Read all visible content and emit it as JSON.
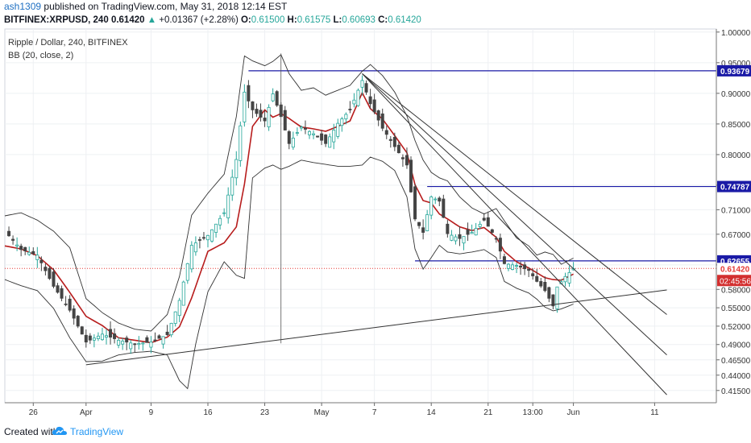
{
  "header": {
    "author": "ash1309",
    "published": "published on TradingView.com, May 31, 2018 12:14 EST",
    "symbol": "BITFINEX:XRPUSD, 240",
    "price": "0.61420",
    "change": "+0.01367 (+2.28%)",
    "o_label": "O:",
    "o": "0.61500",
    "h_label": "H:",
    "h": "0.61575",
    "l_label": "L:",
    "l": "0.60693",
    "c_label": "C:",
    "c": "0.61420",
    "up_arrow": "▲"
  },
  "legend": {
    "title": "Ripple / Dollar, 240, BITFINEX",
    "indicator": "BB (20, close, 2)"
  },
  "footer": {
    "created_with": "Created with",
    "brand": "TradingView",
    "logo_icon": "tradingview-cloud-icon"
  },
  "colors": {
    "candle_up": "#26a69a",
    "candle_down": "#444444",
    "bb_basis": "#b71c1c",
    "bb_band": "#333333",
    "hline": "#1a1aa6",
    "price_line": "#e53935",
    "countdown_bg": "#d32f2f"
  },
  "chart_data": {
    "type": "candlestick",
    "symbol": "XRPUSD",
    "timeframe": "240",
    "x_ticks": [
      {
        "label": "26",
        "i": 7
      },
      {
        "label": "Apr",
        "i": 20
      },
      {
        "label": "9",
        "i": 36
      },
      {
        "label": "16",
        "i": 50
      },
      {
        "label": "23",
        "i": 64
      },
      {
        "label": "May",
        "i": 78
      },
      {
        "label": "7",
        "i": 91
      },
      {
        "label": "14",
        "i": 105
      },
      {
        "label": "21",
        "i": 119
      },
      {
        "label": "13:00",
        "i": 130
      },
      {
        "label": "Jun",
        "i": 140
      },
      {
        "label": "11",
        "i": 160
      }
    ],
    "ylim": [
      0.395,
      1.005
    ],
    "y_ticks": [
      "1.00000",
      "0.95000",
      "0.90000",
      "0.85000",
      "0.80000",
      "0.75000",
      "0.71000",
      "0.67000",
      "0.62000",
      "0.58000",
      "0.55000",
      "0.52000",
      "0.49000",
      "0.46500",
      "0.44000",
      "0.41500"
    ],
    "horizontal_levels": [
      {
        "label": "0.93679",
        "value": 0.93679,
        "i_from": 60,
        "i_to": 165
      },
      {
        "label": "0.74787",
        "value": 0.74787,
        "i_from": 104,
        "i_to": 165
      },
      {
        "label": "0.62655",
        "value": 0.62655,
        "i_from": 101,
        "i_to": 165
      }
    ],
    "last_price": {
      "label": "0.61420",
      "value": 0.6142
    },
    "countdown": "02:45:56",
    "trend_lines": [
      {
        "from": [
          20,
          0.457
        ],
        "to": [
          163,
          0.579
        ]
      },
      {
        "from": [
          88,
          0.932
        ],
        "to": [
          163,
          0.539
        ]
      },
      {
        "from": [
          88,
          0.932
        ],
        "to": [
          163,
          0.473
        ]
      },
      {
        "from": [
          88,
          0.932
        ],
        "to": [
          163,
          0.408
        ]
      }
    ],
    "vertical_lines": [
      {
        "i": 68,
        "from": 0.492,
        "to": 0.965
      }
    ],
    "close_path": [
      [
        0,
        0.675
      ],
      [
        4,
        0.645
      ],
      [
        8,
        0.636
      ],
      [
        12,
        0.585
      ],
      [
        16,
        0.546
      ],
      [
        20,
        0.494
      ],
      [
        24,
        0.507
      ],
      [
        28,
        0.497
      ],
      [
        32,
        0.491
      ],
      [
        36,
        0.494
      ],
      [
        40,
        0.506
      ],
      [
        43,
        0.562
      ],
      [
        46,
        0.652
      ],
      [
        50,
        0.668
      ],
      [
        54,
        0.705
      ],
      [
        57,
        0.792
      ],
      [
        59,
        0.902
      ],
      [
        61,
        0.873
      ],
      [
        64,
        0.855
      ],
      [
        66,
        0.899
      ],
      [
        68,
        0.862
      ],
      [
        70,
        0.818
      ],
      [
        73,
        0.845
      ],
      [
        76,
        0.834
      ],
      [
        79,
        0.818
      ],
      [
        82,
        0.851
      ],
      [
        85,
        0.873
      ],
      [
        88,
        0.921
      ],
      [
        90,
        0.883
      ],
      [
        93,
        0.843
      ],
      [
        96,
        0.813
      ],
      [
        99,
        0.783
      ],
      [
        101,
        0.695
      ],
      [
        103,
        0.673
      ],
      [
        105,
        0.731
      ],
      [
        107,
        0.724
      ],
      [
        109,
        0.671
      ],
      [
        112,
        0.663
      ],
      [
        115,
        0.673
      ],
      [
        118,
        0.693
      ],
      [
        121,
        0.663
      ],
      [
        123,
        0.622
      ],
      [
        126,
        0.619
      ],
      [
        129,
        0.611
      ],
      [
        131,
        0.593
      ],
      [
        133,
        0.578
      ],
      [
        135,
        0.553
      ],
      [
        136,
        0.584
      ],
      [
        138,
        0.601
      ],
      [
        140,
        0.614
      ]
    ],
    "bb_upper_path": [
      [
        0,
        0.7
      ],
      [
        4,
        0.705
      ],
      [
        8,
        0.693
      ],
      [
        12,
        0.675
      ],
      [
        16,
        0.648
      ],
      [
        20,
        0.565
      ],
      [
        24,
        0.542
      ],
      [
        28,
        0.525
      ],
      [
        32,
        0.515
      ],
      [
        36,
        0.512
      ],
      [
        40,
        0.539
      ],
      [
        43,
        0.601
      ],
      [
        46,
        0.701
      ],
      [
        50,
        0.737
      ],
      [
        54,
        0.768
      ],
      [
        57,
        0.862
      ],
      [
        59,
        0.961
      ],
      [
        61,
        0.953
      ],
      [
        64,
        0.945
      ],
      [
        66,
        0.952
      ],
      [
        68,
        0.963
      ],
      [
        70,
        0.932
      ],
      [
        73,
        0.905
      ],
      [
        76,
        0.909
      ],
      [
        79,
        0.897
      ],
      [
        82,
        0.905
      ],
      [
        85,
        0.913
      ],
      [
        88,
        0.936
      ],
      [
        90,
        0.947
      ],
      [
        93,
        0.929
      ],
      [
        96,
        0.902
      ],
      [
        99,
        0.863
      ],
      [
        101,
        0.823
      ],
      [
        103,
        0.791
      ],
      [
        105,
        0.771
      ],
      [
        107,
        0.762
      ],
      [
        109,
        0.757
      ],
      [
        112,
        0.731
      ],
      [
        115,
        0.713
      ],
      [
        118,
        0.703
      ],
      [
        121,
        0.712
      ],
      [
        123,
        0.692
      ],
      [
        126,
        0.664
      ],
      [
        129,
        0.651
      ],
      [
        131,
        0.636
      ],
      [
        133,
        0.641
      ],
      [
        135,
        0.637
      ],
      [
        137,
        0.621
      ],
      [
        140,
        0.631
      ]
    ],
    "bb_lower_path": [
      [
        0,
        0.596
      ],
      [
        4,
        0.586
      ],
      [
        8,
        0.578
      ],
      [
        12,
        0.549
      ],
      [
        16,
        0.501
      ],
      [
        20,
        0.462
      ],
      [
        24,
        0.463
      ],
      [
        28,
        0.473
      ],
      [
        32,
        0.477
      ],
      [
        36,
        0.479
      ],
      [
        40,
        0.473
      ],
      [
        43,
        0.431
      ],
      [
        45,
        0.418
      ],
      [
        47,
        0.491
      ],
      [
        50,
        0.576
      ],
      [
        54,
        0.625
      ],
      [
        57,
        0.603
      ],
      [
        59,
        0.598
      ],
      [
        61,
        0.762
      ],
      [
        64,
        0.778
      ],
      [
        66,
        0.783
      ],
      [
        68,
        0.776
      ],
      [
        70,
        0.781
      ],
      [
        73,
        0.791
      ],
      [
        76,
        0.787
      ],
      [
        79,
        0.784
      ],
      [
        82,
        0.781
      ],
      [
        85,
        0.781
      ],
      [
        88,
        0.783
      ],
      [
        90,
        0.796
      ],
      [
        93,
        0.789
      ],
      [
        96,
        0.774
      ],
      [
        99,
        0.731
      ],
      [
        101,
        0.646
      ],
      [
        103,
        0.613
      ],
      [
        105,
        0.632
      ],
      [
        107,
        0.652
      ],
      [
        109,
        0.641
      ],
      [
        112,
        0.638
      ],
      [
        115,
        0.641
      ],
      [
        118,
        0.645
      ],
      [
        121,
        0.632
      ],
      [
        123,
        0.593
      ],
      [
        126,
        0.582
      ],
      [
        129,
        0.574
      ],
      [
        131,
        0.564
      ],
      [
        133,
        0.551
      ],
      [
        135,
        0.545
      ],
      [
        137,
        0.548
      ],
      [
        140,
        0.556
      ]
    ],
    "bb_basis_path": [
      [
        0,
        0.651
      ],
      [
        4,
        0.646
      ],
      [
        8,
        0.635
      ],
      [
        12,
        0.612
      ],
      [
        16,
        0.575
      ],
      [
        20,
        0.536
      ],
      [
        24,
        0.521
      ],
      [
        28,
        0.501
      ],
      [
        32,
        0.497
      ],
      [
        36,
        0.493
      ],
      [
        40,
        0.502
      ],
      [
        43,
        0.519
      ],
      [
        46,
        0.566
      ],
      [
        50,
        0.642
      ],
      [
        54,
        0.656
      ],
      [
        57,
        0.682
      ],
      [
        59,
        0.752
      ],
      [
        61,
        0.846
      ],
      [
        64,
        0.873
      ],
      [
        66,
        0.861
      ],
      [
        68,
        0.867
      ],
      [
        70,
        0.859
      ],
      [
        73,
        0.845
      ],
      [
        76,
        0.842
      ],
      [
        79,
        0.838
      ],
      [
        82,
        0.846
      ],
      [
        85,
        0.855
      ],
      [
        88,
        0.901
      ],
      [
        90,
        0.875
      ],
      [
        93,
        0.858
      ],
      [
        96,
        0.831
      ],
      [
        99,
        0.803
      ],
      [
        101,
        0.751
      ],
      [
        103,
        0.725
      ],
      [
        105,
        0.721
      ],
      [
        107,
        0.703
      ],
      [
        109,
        0.695
      ],
      [
        112,
        0.682
      ],
      [
        115,
        0.676
      ],
      [
        118,
        0.681
      ],
      [
        121,
        0.665
      ],
      [
        123,
        0.642
      ],
      [
        126,
        0.625
      ],
      [
        129,
        0.615
      ],
      [
        131,
        0.607
      ],
      [
        133,
        0.599
      ],
      [
        135,
        0.596
      ],
      [
        137,
        0.595
      ],
      [
        140,
        0.605
      ]
    ]
  }
}
